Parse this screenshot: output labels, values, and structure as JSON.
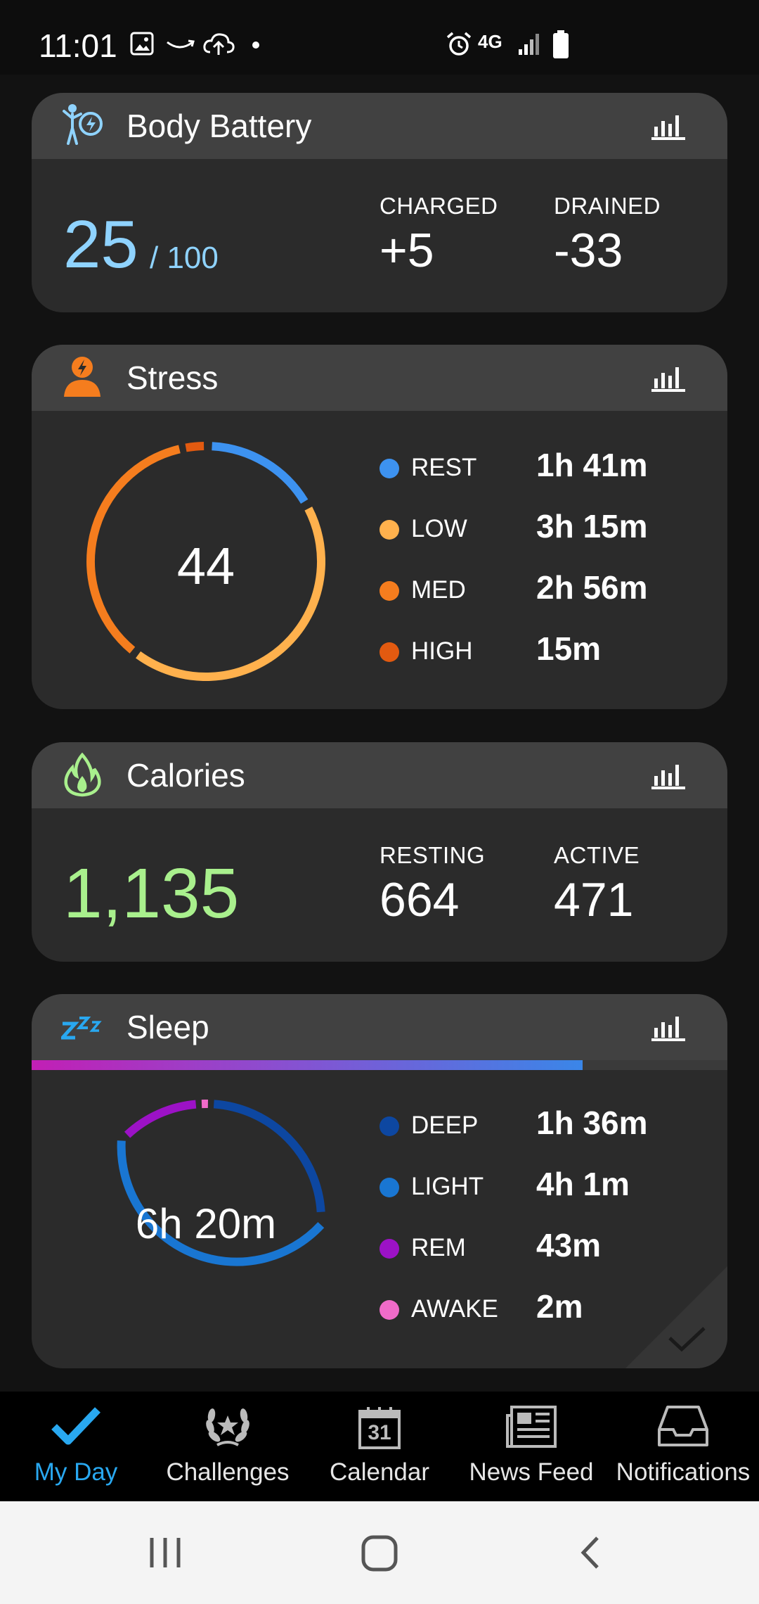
{
  "status_bar": {
    "time": "11:01",
    "network": "4G",
    "icons": [
      "image-icon",
      "amazon-icon",
      "cloud-upload-icon",
      "dot-icon",
      "alarm-icon",
      "signal-icon",
      "battery-icon"
    ]
  },
  "body_battery": {
    "title": "Body Battery",
    "value": "25",
    "max": "/ 100",
    "charged_label": "CHARGED",
    "charged_value": "+5",
    "drained_label": "DRAINED",
    "drained_value": "-33",
    "accent": "#8fd3ff"
  },
  "stress": {
    "title": "Stress",
    "score": "44",
    "legend": [
      {
        "label": "REST",
        "value": "1h 41m",
        "color": "#3d92f0"
      },
      {
        "label": "LOW",
        "value": "3h 15m",
        "color": "#ffb14d"
      },
      {
        "label": "MED",
        "value": "2h 56m",
        "color": "#f57d1e"
      },
      {
        "label": "HIGH",
        "value": "15m",
        "color": "#e25a10"
      }
    ]
  },
  "calories": {
    "title": "Calories",
    "total": "1,135",
    "resting_label": "RESTING",
    "resting_value": "664",
    "active_label": "ACTIVE",
    "active_value": "471",
    "accent": "#a9f08d"
  },
  "sleep": {
    "title": "Sleep",
    "duration": "6h 20m",
    "legend": [
      {
        "label": "DEEP",
        "value": "1h 36m",
        "color": "#0d47a1"
      },
      {
        "label": "LIGHT",
        "value": "4h 1m",
        "color": "#1976d2"
      },
      {
        "label": "REM",
        "value": "43m",
        "color": "#9c12c6"
      },
      {
        "label": "AWAKE",
        "value": "2m",
        "color": "#f06bc9"
      }
    ]
  },
  "bottom_nav": {
    "items": [
      {
        "label": "My Day",
        "icon": "checkmark-icon",
        "active": true
      },
      {
        "label": "Challenges",
        "icon": "laurel-icon",
        "active": false
      },
      {
        "label": "Calendar",
        "icon": "calendar-icon",
        "active": false,
        "icon_text": "31"
      },
      {
        "label": "News Feed",
        "icon": "newspaper-icon",
        "active": false
      },
      {
        "label": "Notifications",
        "icon": "inbox-icon",
        "active": false
      }
    ]
  },
  "system_nav": {
    "icons": [
      "recent-apps-icon",
      "home-icon",
      "back-icon"
    ]
  }
}
